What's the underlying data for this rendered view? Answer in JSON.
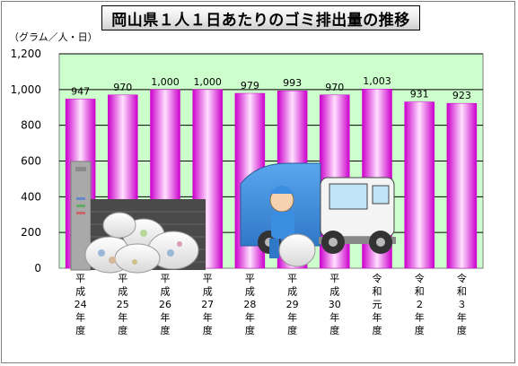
{
  "chart_data": {
    "type": "bar",
    "title": "岡山県１人１日あたりのゴミ排出量の推移",
    "ylabel": "（グラム／人・日）",
    "categories": [
      "平成24年度",
      "平成25年度",
      "平成26年度",
      "平成27年度",
      "平成28年度",
      "平成29年度",
      "平成30年度",
      "令和元年度",
      "令和２年度",
      "令和３年度"
    ],
    "category_labels": [
      [
        "平",
        "成",
        "24",
        "年",
        "度"
      ],
      [
        "平",
        "成",
        "25",
        "年",
        "度"
      ],
      [
        "平",
        "成",
        "26",
        "年",
        "度"
      ],
      [
        "平",
        "成",
        "27",
        "年",
        "度"
      ],
      [
        "平",
        "成",
        "28",
        "年",
        "度"
      ],
      [
        "平",
        "成",
        "29",
        "年",
        "度"
      ],
      [
        "平",
        "成",
        "30",
        "年",
        "度"
      ],
      [
        "令",
        "和",
        "元",
        "年",
        "度"
      ],
      [
        "令",
        "和",
        "２",
        "年",
        "度"
      ],
      [
        "令",
        "和",
        "３",
        "年",
        "度"
      ]
    ],
    "values": [
      947,
      970,
      1000,
      1000,
      979,
      993,
      970,
      1003,
      931,
      923
    ],
    "value_labels": [
      "947",
      "970",
      "1,000",
      "1,000",
      "979",
      "993",
      "970",
      "1,003",
      "931",
      "923"
    ],
    "ylim": [
      0,
      1200
    ],
    "yticks": [
      0,
      200,
      400,
      600,
      800,
      1000,
      1200
    ],
    "ytick_labels": [
      "0",
      "200",
      "400",
      "600",
      "800",
      "1,000",
      "1,200"
    ],
    "grid": true,
    "colors": {
      "plot_background": "#ccffcc",
      "bar_edge": "#cc00cc",
      "bar_center": "#ffe0ff",
      "gridline": "#000000"
    }
  }
}
